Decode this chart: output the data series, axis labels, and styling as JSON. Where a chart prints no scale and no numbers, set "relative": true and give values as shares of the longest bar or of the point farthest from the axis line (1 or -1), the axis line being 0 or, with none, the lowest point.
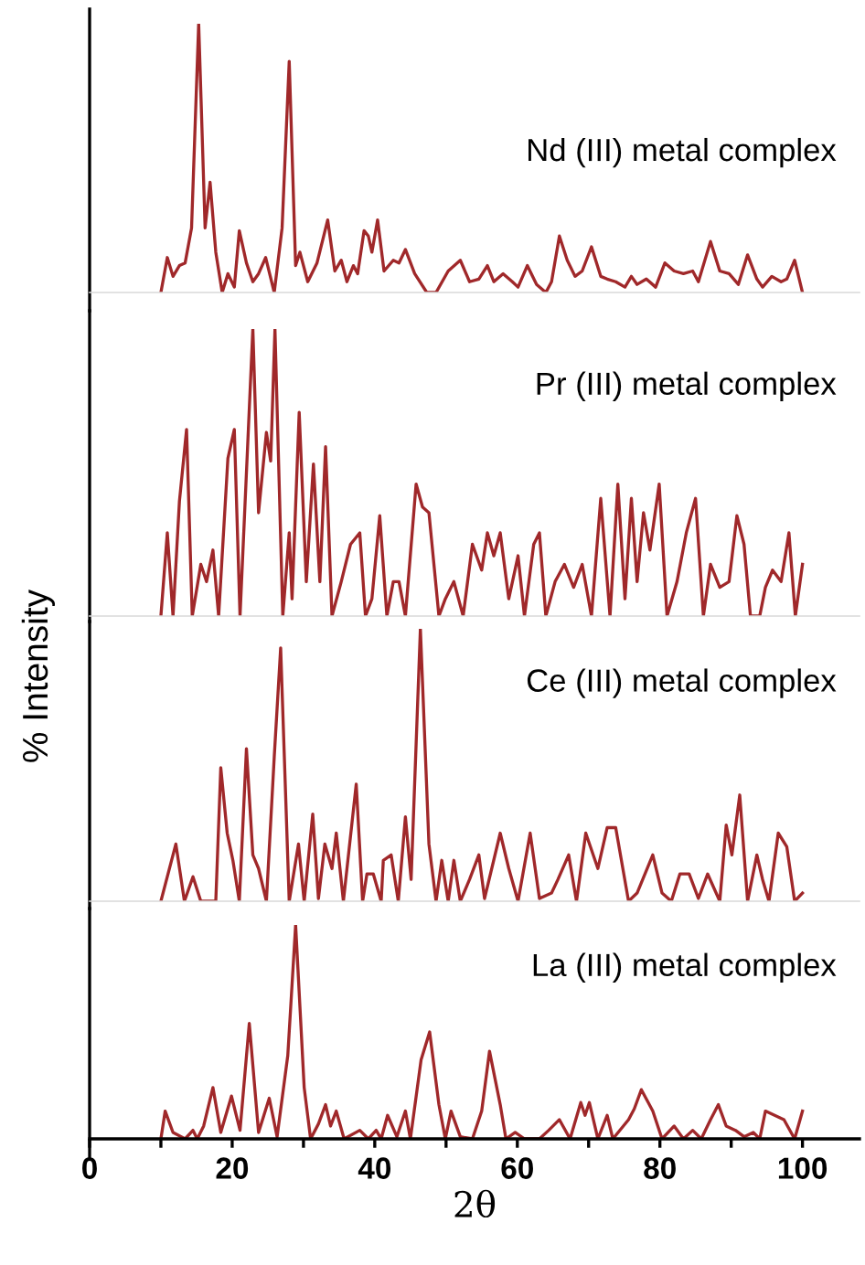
{
  "chart_data": [
    {
      "type": "line",
      "relative": true,
      "tick_labels": false,
      "xlim": [
        0,
        108
      ],
      "series": [
        {
          "name": "Nd (III) metal complex",
          "color": "#a0282a",
          "x": [
            10.0,
            10.9,
            11.7,
            12.6,
            13.4,
            14.3,
            15.3,
            16.2,
            16.9,
            17.7,
            18.6,
            19.4,
            20.3,
            21.0,
            22.0,
            22.9,
            23.7,
            24.7,
            25.9,
            27.0,
            28.0,
            28.9,
            29.5,
            30.6,
            31.9,
            33.4,
            34.4,
            35.3,
            36.1,
            37.0,
            37.6,
            38.5,
            39.1,
            39.6,
            40.4,
            41.3,
            42.6,
            43.4,
            44.3,
            45.6,
            47.3,
            48.6,
            50.3,
            52.0,
            53.3,
            54.6,
            55.8,
            56.7,
            58.0,
            59.3,
            60.1,
            61.4,
            62.7,
            64.0,
            64.8,
            65.9,
            67.0,
            68.1,
            69.1,
            70.4,
            71.7,
            72.6,
            73.8,
            75.1,
            76.0,
            76.8,
            78.1,
            79.4,
            80.7,
            82.0,
            83.3,
            84.6,
            85.4,
            87.1,
            88.4,
            89.7,
            91.0,
            92.3,
            93.6,
            94.4,
            95.7,
            97.0,
            97.8,
            98.9,
            100.0
          ],
          "values": [
            0,
            0.13,
            0.06,
            0.1,
            0.11,
            0.24,
            1.0,
            0.24,
            0.41,
            0.15,
            0,
            0.07,
            0.02,
            0.23,
            0.11,
            0.04,
            0.07,
            0.13,
            0,
            0.24,
            0.86,
            0.1,
            0.15,
            0.04,
            0.11,
            0.27,
            0.08,
            0.12,
            0.04,
            0.1,
            0.07,
            0.23,
            0.21,
            0.15,
            0.27,
            0.08,
            0.12,
            0.11,
            0.16,
            0.07,
            0,
            0,
            0.08,
            0.12,
            0.04,
            0.05,
            0.1,
            0.04,
            0.07,
            0.04,
            0.02,
            0.1,
            0.03,
            0,
            0.04,
            0.21,
            0.12,
            0.06,
            0.08,
            0.17,
            0.06,
            0.05,
            0.04,
            0.02,
            0.06,
            0.03,
            0.05,
            0.02,
            0.11,
            0.08,
            0.07,
            0.08,
            0.04,
            0.19,
            0.08,
            0.07,
            0.03,
            0.14,
            0.05,
            0.02,
            0.06,
            0.04,
            0.05,
            0.12,
            0
          ]
        }
      ]
    },
    {
      "type": "line",
      "relative": true,
      "tick_labels": false,
      "xlim": [
        0,
        108
      ],
      "series": [
        {
          "name": "Pr (III) metal complex",
          "color": "#a0282a",
          "x": [
            10.0,
            10.9,
            11.7,
            12.6,
            13.6,
            14.4,
            15.6,
            16.4,
            17.3,
            18.1,
            19.4,
            20.3,
            21.1,
            22.9,
            23.7,
            24.8,
            25.4,
            26.0,
            27.1,
            28.0,
            28.4,
            29.4,
            30.4,
            31.4,
            32.3,
            33.1,
            34.0,
            35.3,
            36.6,
            37.9,
            38.7,
            39.6,
            40.7,
            41.7,
            42.6,
            43.4,
            44.3,
            45.8,
            46.7,
            47.6,
            49.0,
            49.9,
            51.1,
            52.4,
            53.7,
            55.0,
            55.8,
            56.7,
            57.6,
            58.8,
            60.1,
            61.0,
            62.3,
            63.1,
            64.0,
            65.3,
            66.6,
            67.9,
            69.1,
            70.4,
            71.7,
            73.0,
            74.1,
            75.1,
            76.0,
            76.8,
            77.7,
            78.6,
            79.9,
            81.0,
            82.4,
            83.7,
            85.0,
            86.1,
            87.1,
            88.4,
            89.7,
            90.8,
            91.8,
            92.7,
            94.0,
            94.8,
            95.8,
            97.0,
            98.1,
            99.0,
            100.0
          ],
          "values": [
            0,
            0.29,
            0,
            0.4,
            0.65,
            0,
            0.18,
            0.12,
            0.23,
            0,
            0.55,
            0.65,
            0,
            1.0,
            0.36,
            0.64,
            0.54,
            1.0,
            0,
            0.29,
            0.06,
            0.71,
            0.12,
            0.53,
            0.12,
            0.59,
            0,
            0.12,
            0.25,
            0.29,
            0,
            0.06,
            0.35,
            0,
            0.12,
            0.12,
            0,
            0.46,
            0.38,
            0.36,
            0,
            0.06,
            0.12,
            0,
            0.25,
            0.16,
            0.29,
            0.21,
            0.29,
            0.06,
            0.21,
            0,
            0.25,
            0.29,
            0,
            0.12,
            0.18,
            0.1,
            0.18,
            0,
            0.41,
            0,
            0.46,
            0.06,
            0.41,
            0.12,
            0.36,
            0.23,
            0.46,
            0,
            0.12,
            0.29,
            0.41,
            0,
            0.18,
            0.1,
            0.12,
            0.35,
            0.25,
            0,
            0,
            0.1,
            0.16,
            0.12,
            0.29,
            0,
            0.18
          ]
        }
      ]
    },
    {
      "type": "line",
      "relative": true,
      "tick_labels": false,
      "xlim": [
        0,
        108
      ],
      "ylabel": "% Intensity",
      "series": [
        {
          "name": "Ce (III) metal complex",
          "color": "#a0282a",
          "x": [
            10.0,
            12.1,
            13.3,
            14.5,
            15.6,
            17.7,
            18.4,
            19.3,
            20.1,
            21.0,
            22.0,
            22.9,
            23.7,
            24.8,
            25.9,
            26.8,
            28.0,
            29.3,
            30.1,
            31.3,
            32.1,
            33.0,
            34.0,
            34.6,
            35.6,
            37.4,
            38.3,
            38.9,
            39.8,
            40.9,
            41.2,
            42.3,
            43.3,
            44.3,
            45.1,
            46.4,
            47.6,
            48.6,
            49.4,
            50.3,
            51.1,
            52.0,
            53.3,
            54.6,
            55.4,
            57.6,
            58.8,
            60.1,
            61.8,
            63.1,
            64.8,
            65.7,
            67.2,
            68.3,
            69.6,
            71.3,
            72.6,
            73.8,
            75.6,
            76.8,
            79.0,
            80.3,
            81.6,
            82.8,
            84.1,
            85.4,
            86.7,
            88.4,
            89.3,
            90.1,
            91.2,
            92.3,
            93.6,
            94.4,
            95.3,
            96.6,
            97.8,
            98.9,
            100.0
          ],
          "values": [
            0,
            0.21,
            0,
            0.09,
            0,
            0,
            0.49,
            0.25,
            0.15,
            0,
            0.56,
            0.17,
            0.12,
            0,
            0.53,
            0.93,
            0,
            0.21,
            0,
            0.32,
            0.01,
            0.21,
            0.12,
            0.25,
            0,
            0.43,
            0,
            0.1,
            0.1,
            0,
            0.15,
            0.17,
            0,
            0.31,
            0.08,
            1.0,
            0.21,
            0,
            0.15,
            0,
            0.15,
            0,
            0.08,
            0.17,
            0.01,
            0.25,
            0.12,
            0,
            0.25,
            0.01,
            0.03,
            0.08,
            0.17,
            0,
            0.25,
            0.12,
            0.27,
            0.27,
            0,
            0.03,
            0.17,
            0.03,
            0,
            0.1,
            0.1,
            0.01,
            0.1,
            0,
            0.28,
            0.17,
            0.39,
            0,
            0.17,
            0.08,
            0,
            0.25,
            0.2,
            0,
            0.03
          ]
        }
      ]
    },
    {
      "type": "line",
      "relative": true,
      "tick_labels": "x",
      "xlabel": "2θ",
      "xlim": [
        0,
        108
      ],
      "xticks": [
        0,
        {
          "value": 10,
          "label": null
        },
        20,
        {
          "value": 30,
          "label": null
        },
        40,
        {
          "value": 50,
          "label": null
        },
        60,
        {
          "value": 70,
          "label": null
        },
        80,
        {
          "value": 90,
          "label": null
        },
        100
      ],
      "series": [
        {
          "name": "La (III) metal complex",
          "color": "#a0282a",
          "x": [
            10.0,
            10.6,
            11.7,
            13.4,
            14.5,
            15.1,
            16.0,
            17.3,
            18.4,
            19.9,
            21.1,
            22.4,
            23.7,
            25.2,
            26.3,
            27.8,
            28.9,
            30.1,
            31.0,
            32.1,
            33.1,
            33.8,
            34.6,
            35.7,
            37.9,
            39.1,
            40.2,
            40.9,
            41.8,
            43.1,
            44.3,
            45.0,
            46.5,
            47.7,
            49.0,
            49.9,
            50.7,
            52.0,
            53.7,
            55.0,
            56.1,
            57.6,
            58.4,
            59.7,
            61.0,
            63.1,
            64.4,
            65.9,
            67.4,
            68.9,
            69.5,
            70.1,
            71.3,
            72.6,
            73.4,
            75.6,
            76.4,
            77.4,
            79.0,
            80.3,
            82.0,
            83.3,
            84.6,
            85.8,
            87.1,
            88.2,
            89.3,
            90.6,
            91.8,
            93.1,
            94.0,
            94.8,
            96.1,
            97.4,
            98.9,
            100.0
          ],
          "values": [
            0,
            0.13,
            0.03,
            0,
            0.04,
            0,
            0.06,
            0.24,
            0.03,
            0.2,
            0.04,
            0.54,
            0.03,
            0.19,
            0.01,
            0.39,
            1.0,
            0.24,
            0,
            0.07,
            0.16,
            0.06,
            0.13,
            0,
            0.04,
            0,
            0.04,
            0,
            0.11,
            0.01,
            0.13,
            0,
            0.37,
            0.5,
            0.16,
            0,
            0.13,
            0.01,
            0,
            0.13,
            0.41,
            0.16,
            0,
            0.03,
            0,
            0,
            0.04,
            0.09,
            0,
            0.17,
            0.11,
            0.17,
            0,
            0.11,
            0,
            0.09,
            0.14,
            0.23,
            0.13,
            0,
            0.06,
            0,
            0.04,
            0,
            0.09,
            0.16,
            0.06,
            0.04,
            0.01,
            0.03,
            0,
            0.13,
            0.11,
            0.09,
            0,
            0.13
          ]
        }
      ]
    }
  ]
}
